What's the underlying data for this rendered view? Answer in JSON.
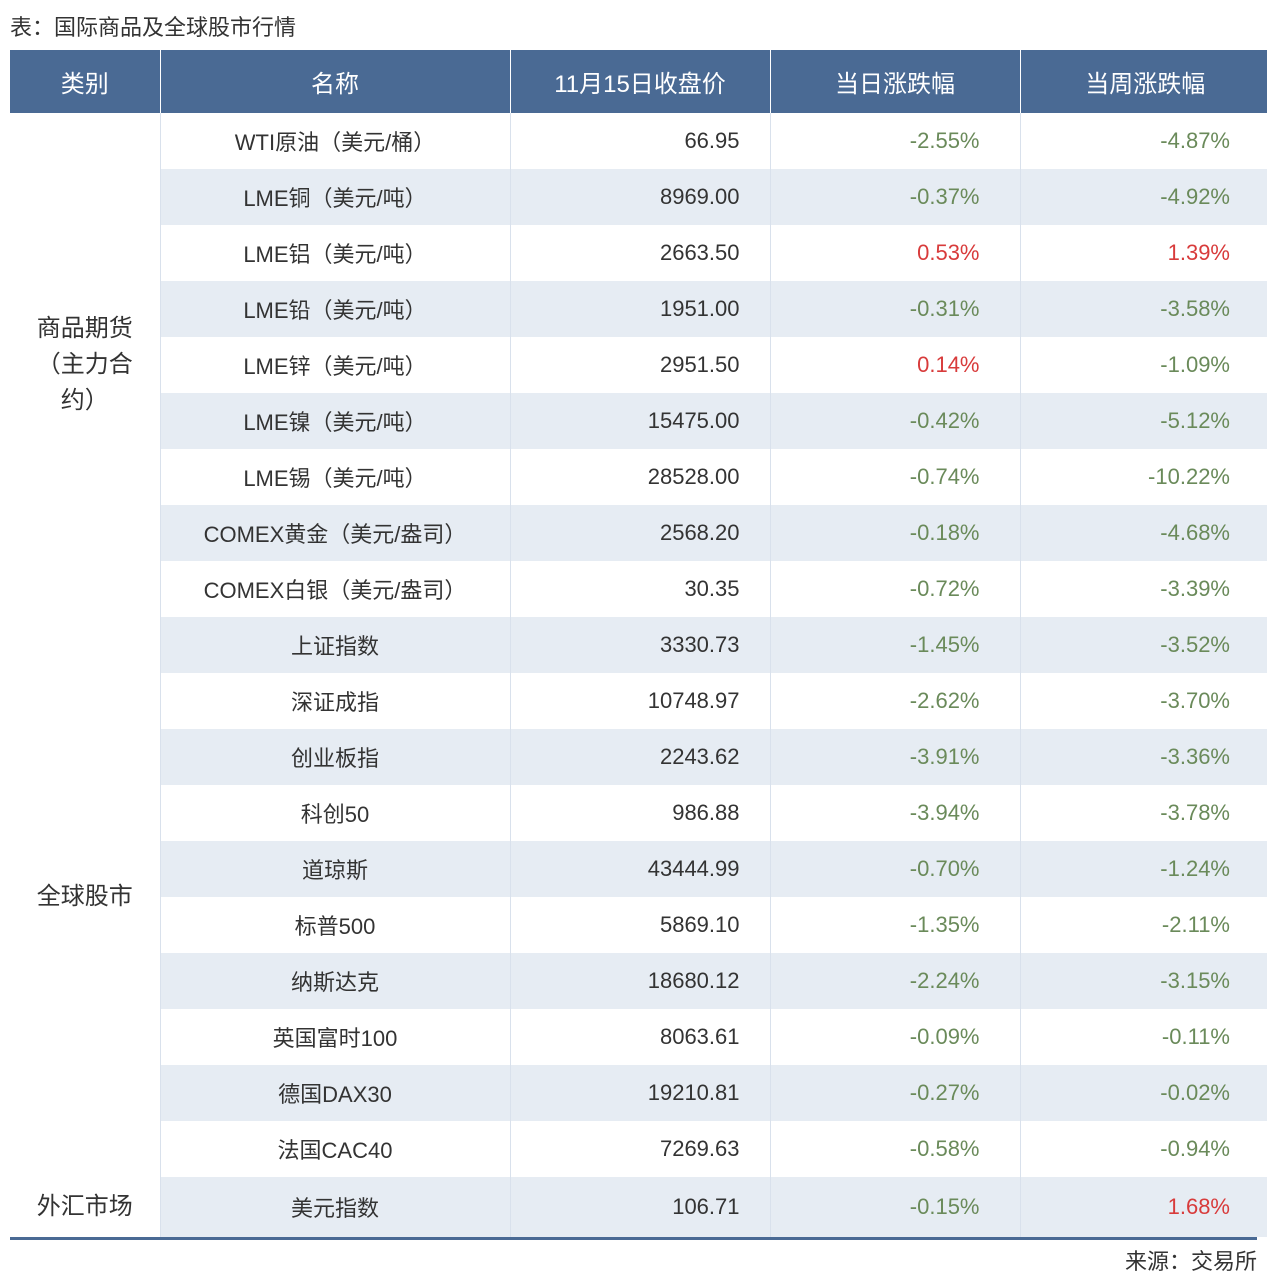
{
  "title": "表：国际商品及全球股市行情",
  "source": "来源：交易所",
  "colors": {
    "header_bg": "#4a6a94",
    "header_fg": "#ffffff",
    "stripe_even": "#e6ecf3",
    "stripe_odd": "#ffffff",
    "negative": "#6a8a5a",
    "positive": "#d83b3b",
    "text": "#333333",
    "bottom_border": "#4a6a94"
  },
  "columns": [
    "类别",
    "名称",
    "11月15日收盘价",
    "当日涨跌幅",
    "当周涨跌幅"
  ],
  "groups": [
    {
      "category": "商品期货（主力合约）",
      "rows": [
        {
          "name": "WTI原油（美元/桶）",
          "price": "66.95",
          "day": "-2.55%",
          "week": "-4.87%"
        },
        {
          "name": "LME铜（美元/吨）",
          "price": "8969.00",
          "day": "-0.37%",
          "week": "-4.92%"
        },
        {
          "name": "LME铝（美元/吨）",
          "price": "2663.50",
          "day": "0.53%",
          "week": "1.39%"
        },
        {
          "name": "LME铅（美元/吨）",
          "price": "1951.00",
          "day": "-0.31%",
          "week": "-3.58%"
        },
        {
          "name": "LME锌（美元/吨）",
          "price": "2951.50",
          "day": "0.14%",
          "week": "-1.09%"
        },
        {
          "name": "LME镍（美元/吨）",
          "price": "15475.00",
          "day": "-0.42%",
          "week": "-5.12%"
        },
        {
          "name": "LME锡（美元/吨）",
          "price": "28528.00",
          "day": "-0.74%",
          "week": "-10.22%"
        },
        {
          "name": "COMEX黄金（美元/盎司）",
          "price": "2568.20",
          "day": "-0.18%",
          "week": "-4.68%"
        },
        {
          "name": "COMEX白银（美元/盎司）",
          "price": "30.35",
          "day": "-0.72%",
          "week": "-3.39%"
        }
      ]
    },
    {
      "category": "全球股市",
      "rows": [
        {
          "name": "上证指数",
          "price": "3330.73",
          "day": "-1.45%",
          "week": "-3.52%"
        },
        {
          "name": "深证成指",
          "price": "10748.97",
          "day": "-2.62%",
          "week": "-3.70%"
        },
        {
          "name": "创业板指",
          "price": "2243.62",
          "day": "-3.91%",
          "week": "-3.36%"
        },
        {
          "name": "科创50",
          "price": "986.88",
          "day": "-3.94%",
          "week": "-3.78%"
        },
        {
          "name": "道琼斯",
          "price": "43444.99",
          "day": "-0.70%",
          "week": "-1.24%"
        },
        {
          "name": "标普500",
          "price": "5869.10",
          "day": "-1.35%",
          "week": "-2.11%"
        },
        {
          "name": "纳斯达克",
          "price": "18680.12",
          "day": "-2.24%",
          "week": "-3.15%"
        },
        {
          "name": "英国富时100",
          "price": "8063.61",
          "day": "-0.09%",
          "week": "-0.11%"
        },
        {
          "name": "德国DAX30",
          "price": "19210.81",
          "day": "-0.27%",
          "week": "-0.02%"
        },
        {
          "name": "法国CAC40",
          "price": "7269.63",
          "day": "-0.58%",
          "week": "-0.94%"
        }
      ]
    },
    {
      "category": "外汇市场",
      "rows": [
        {
          "name": "美元指数",
          "price": "106.71",
          "day": "-0.15%",
          "week": "1.68%"
        }
      ]
    }
  ]
}
